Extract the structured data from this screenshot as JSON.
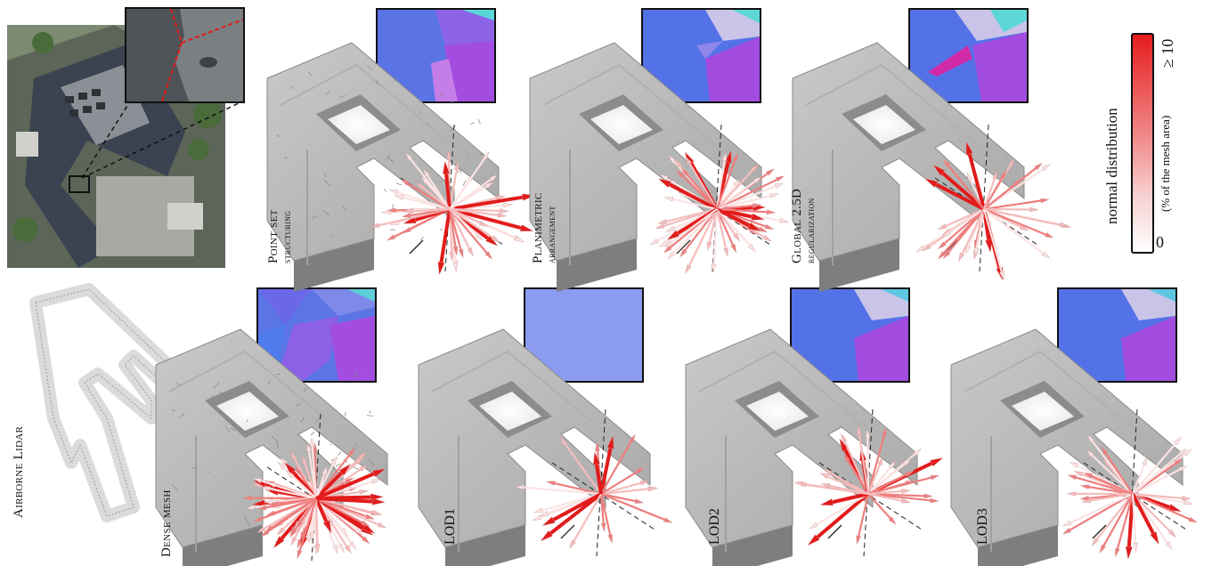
{
  "panels": {
    "point_set": {
      "line1": "Point set",
      "line2": "structuring"
    },
    "planimetric": {
      "line1": "Planimetric",
      "line2": "arrangement"
    },
    "global": {
      "line1": "Global 2.5D",
      "line2": "regularization"
    },
    "airborne": {
      "line1": "Airborne Lidar"
    },
    "dense": {
      "line1": "Dense mesh"
    },
    "lod1": {
      "line1": "LOD1"
    },
    "lod2": {
      "line1": "LOD2"
    },
    "lod3": {
      "line1": "LOD3"
    }
  },
  "legend": {
    "title": "normal distribution",
    "subtitle": "(% of the mesh area)",
    "max_label": "≥ 10",
    "min_label": "0",
    "colors": {
      "high": "#e51d1d",
      "low": "#ffffff"
    }
  },
  "colors": {
    "mesh_gray": "#9a9a9a",
    "normal_blue": "#5b7be8",
    "normal_purple": "#a24de0",
    "normal_cyan": "#5fd6d8"
  }
}
